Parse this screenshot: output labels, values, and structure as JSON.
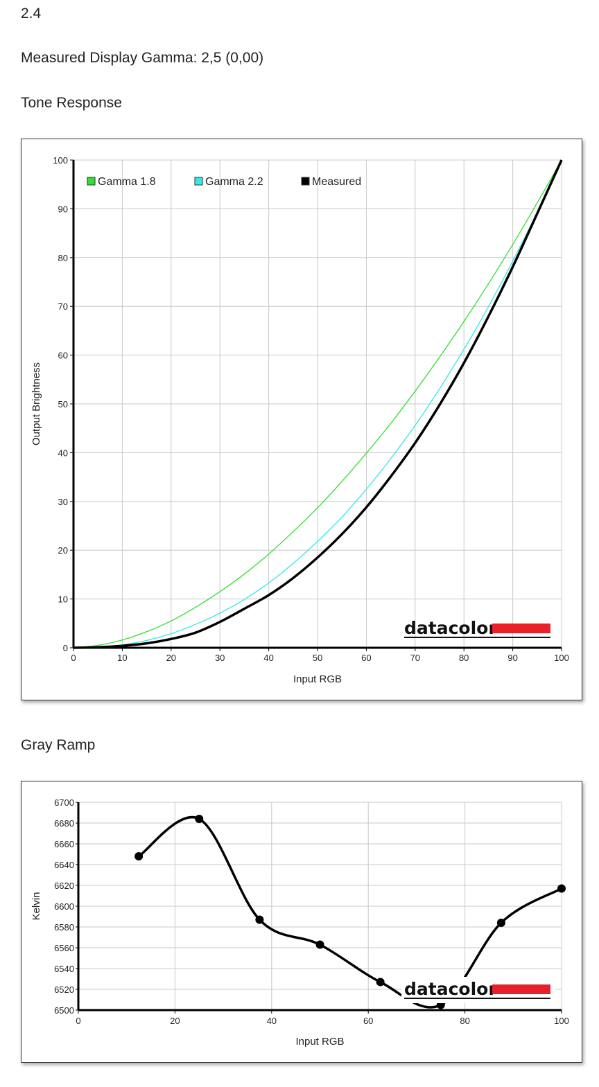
{
  "header": {
    "version": "2.4",
    "measured_gamma": "Measured Display Gamma: 2,5 (0,00)",
    "tone_title": "Tone Response",
    "gray_title": "Gray Ramp"
  },
  "brand": {
    "logo_text": "datacolor",
    "logo_color": "#e8202a"
  },
  "colors": {
    "gamma18": "#33dd33",
    "gamma22": "#33e8e8",
    "measured": "#000000",
    "grid": "#c8c8c8"
  },
  "chart_data": [
    {
      "type": "line",
      "xlabel": "Input RGB",
      "ylabel": "Output Brightness",
      "xlim": [
        0,
        100
      ],
      "ylim": [
        0,
        100
      ],
      "xticks": [
        "0",
        "10",
        "20",
        "30",
        "40",
        "50",
        "60",
        "70",
        "80",
        "90",
        "100"
      ],
      "yticks": [
        "0",
        "10",
        "20",
        "30",
        "40",
        "50",
        "60",
        "70",
        "80",
        "90",
        "100"
      ],
      "grid": true,
      "legend": "top-left",
      "series": [
        {
          "name": "Gamma 1.8",
          "color": "#33dd33",
          "x": [
            0,
            5,
            10,
            15,
            20,
            25,
            30,
            35,
            40,
            45,
            50,
            55,
            60,
            65,
            70,
            75,
            80,
            85,
            90,
            95,
            100
          ],
          "y": [
            0,
            0.5,
            1.6,
            3.3,
            5.5,
            8.3,
            11.5,
            15.1,
            19.2,
            23.8,
            28.7,
            34.1,
            39.9,
            46.0,
            52.6,
            59.6,
            66.9,
            74.6,
            82.7,
            91.2,
            100
          ]
        },
        {
          "name": "Gamma 2.2",
          "color": "#33e8e8",
          "x": [
            0,
            5,
            10,
            15,
            20,
            25,
            30,
            35,
            40,
            45,
            50,
            55,
            60,
            65,
            70,
            75,
            80,
            85,
            90,
            95,
            100
          ],
          "y": [
            0,
            0.1,
            0.6,
            1.5,
            2.9,
            4.8,
            7.1,
            9.9,
            13.3,
            17.3,
            21.8,
            26.8,
            32.5,
            38.8,
            45.6,
            53.1,
            61.2,
            69.9,
            79.3,
            89.3,
            100
          ]
        },
        {
          "name": "Measured",
          "color": "#000000",
          "x": [
            0,
            5,
            10,
            15,
            20,
            25,
            30,
            35,
            40,
            45,
            50,
            55,
            60,
            65,
            70,
            75,
            80,
            85,
            90,
            95,
            100
          ],
          "y": [
            0,
            0.1,
            0.4,
            0.9,
            1.8,
            3.1,
            5.3,
            8.0,
            10.8,
            14.3,
            18.5,
            23.3,
            28.8,
            35.1,
            42.0,
            49.8,
            58.4,
            67.9,
            78.1,
            89.0,
            100
          ]
        }
      ]
    },
    {
      "type": "line",
      "xlabel": "Input RGB",
      "ylabel": "Kelvin",
      "xlim": [
        0,
        100
      ],
      "ylim": [
        6500,
        6700
      ],
      "xticks": [
        "0",
        "20",
        "40",
        "60",
        "80",
        "100"
      ],
      "yticks": [
        "6500",
        "6520",
        "6540",
        "6560",
        "6580",
        "6600",
        "6620",
        "6640",
        "6660",
        "6680",
        "6700"
      ],
      "grid": true,
      "series": [
        {
          "color": "#000000",
          "x": [
            12.5,
            25,
            37.5,
            50,
            62.5,
            75,
            87.5,
            100
          ],
          "y": [
            6648,
            6684,
            6587,
            6563,
            6527,
            6505,
            6584,
            6617
          ]
        }
      ]
    }
  ]
}
